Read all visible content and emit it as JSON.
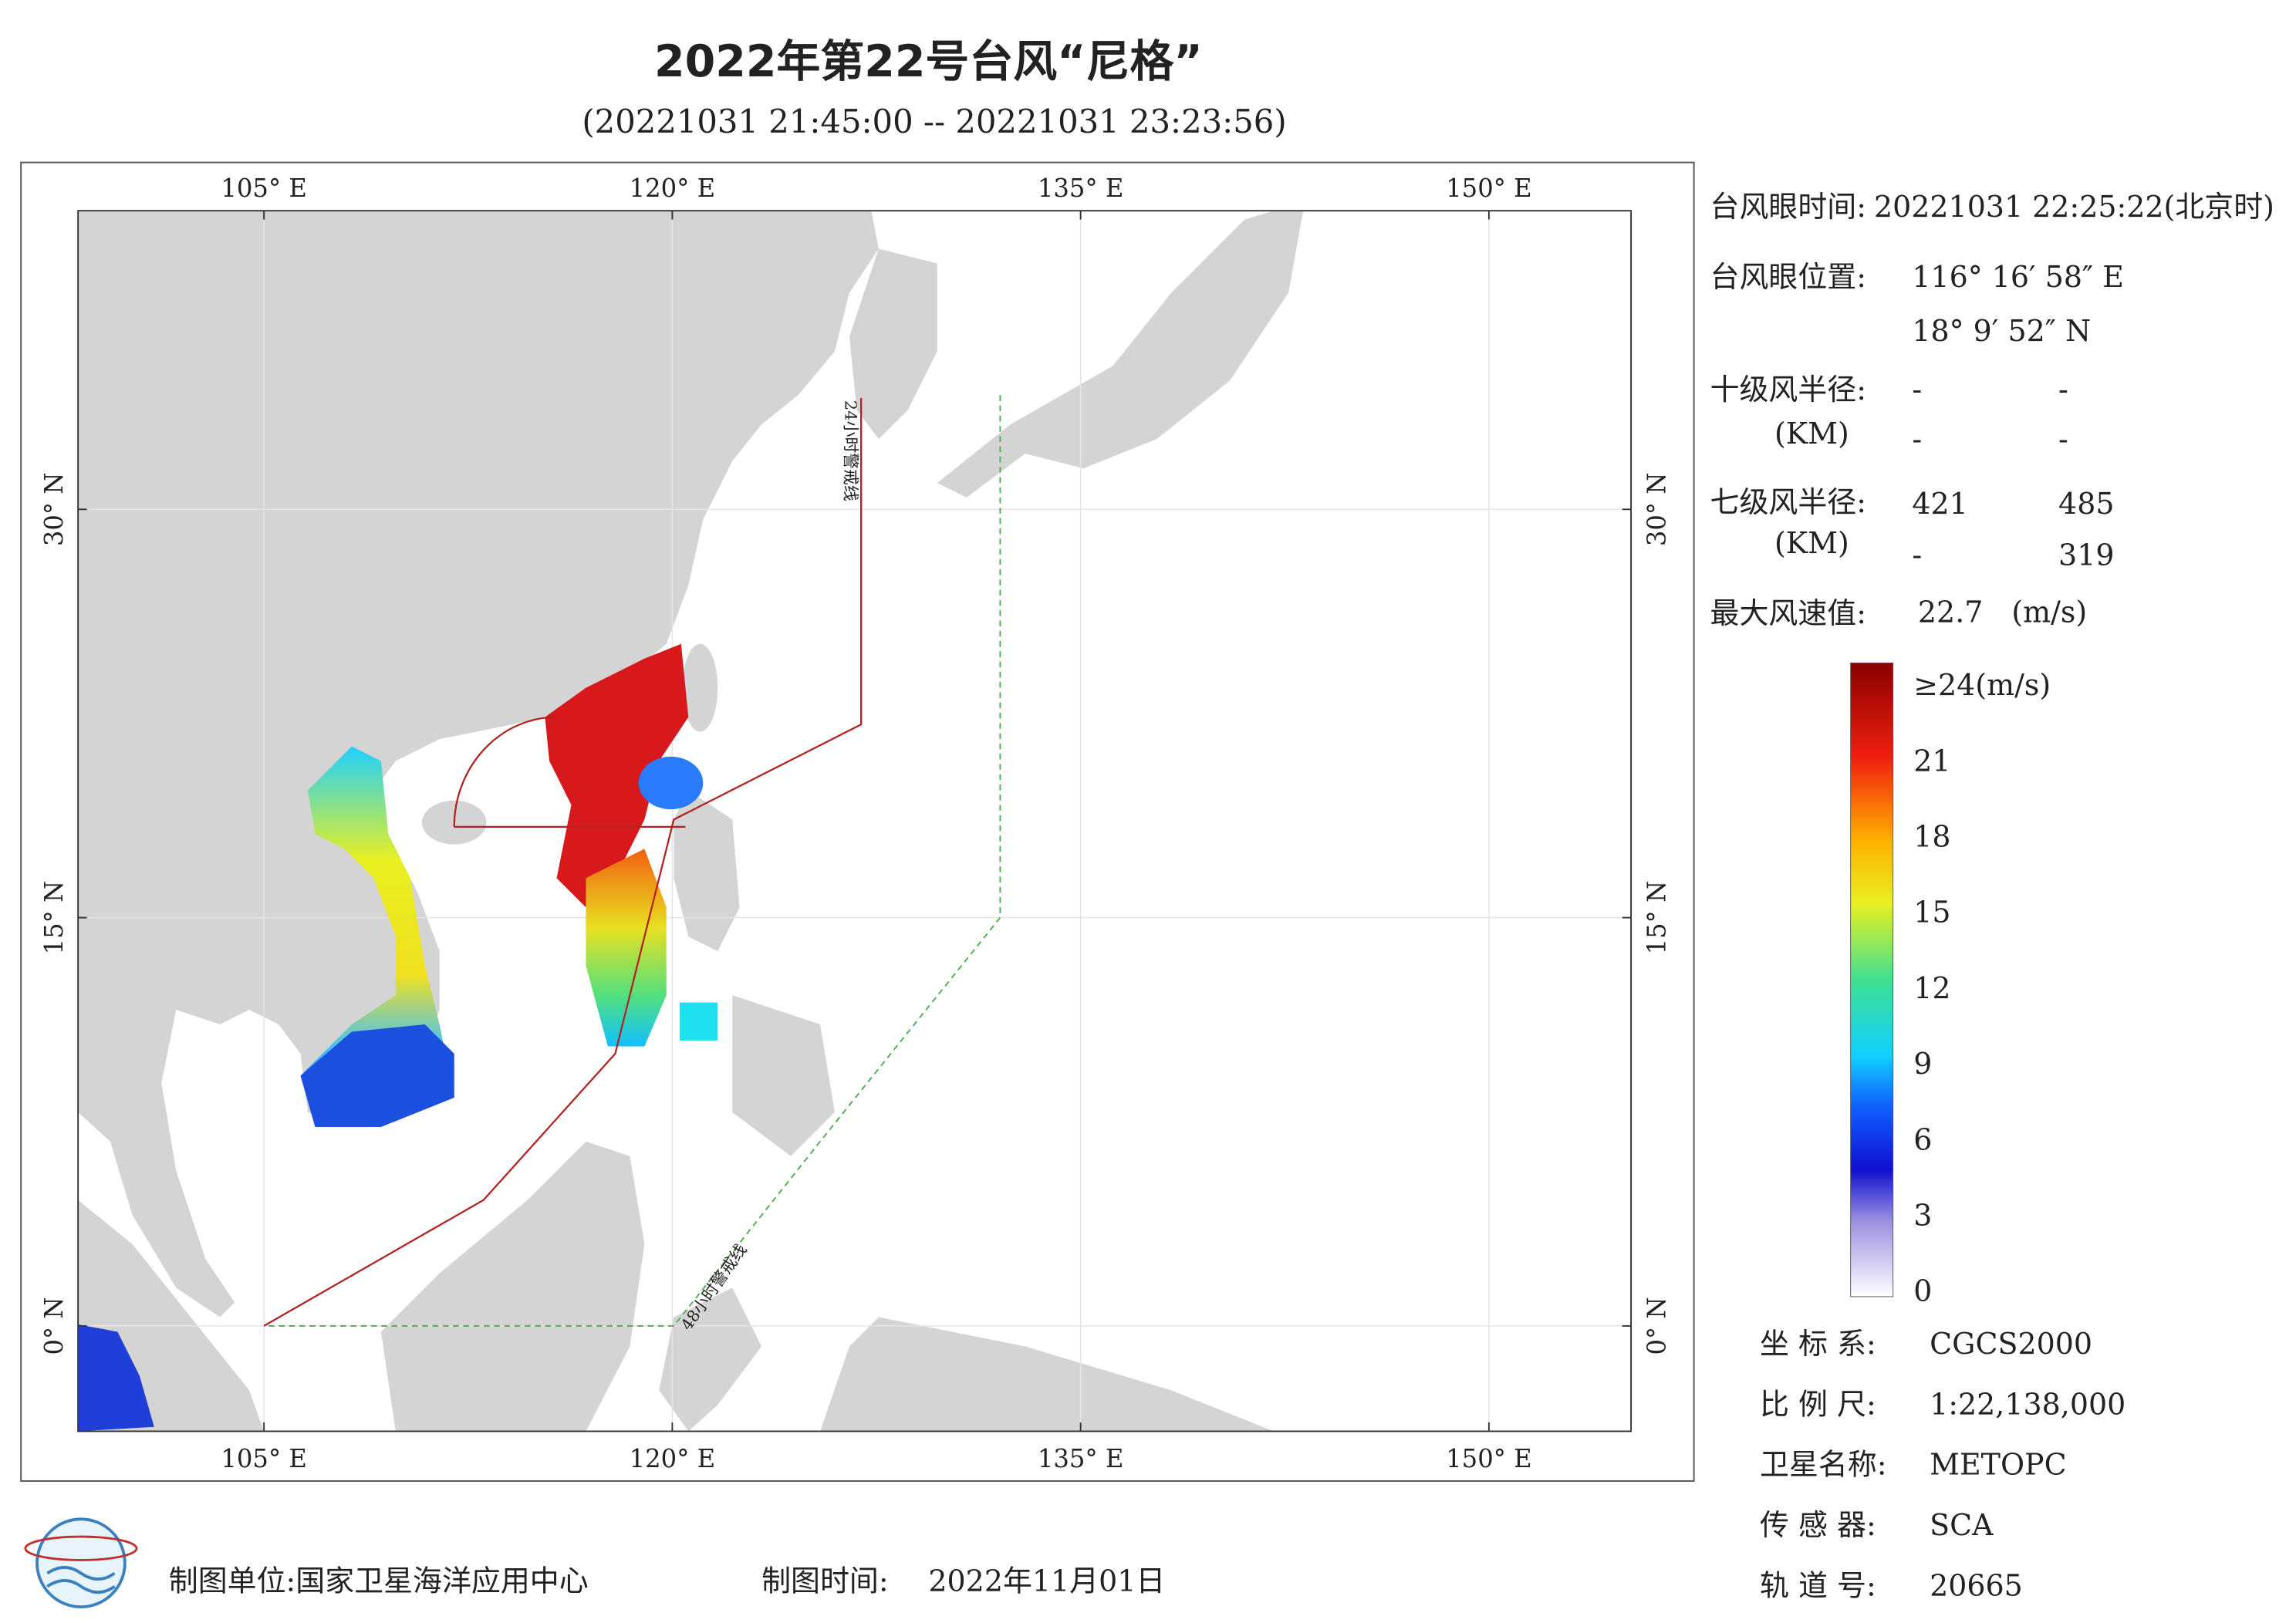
{
  "header": {
    "title": "2022年第22号台风“尼格”",
    "subtitle": "(20221031 21:45:00 -- 20221031 23:23:56)"
  },
  "map": {
    "xlim": [
      98.17,
      155.22
    ],
    "ylim": [
      -3.87,
      40.97
    ],
    "lon_ticks": [
      {
        "value": 105,
        "label": "105° E"
      },
      {
        "value": 120,
        "label": "120° E"
      },
      {
        "value": 135,
        "label": "135° E"
      },
      {
        "value": 150,
        "label": "150° E"
      }
    ],
    "lat_ticks": [
      {
        "value": 0,
        "label": "0° N"
      },
      {
        "value": 15,
        "label": "15° N"
      },
      {
        "value": 30,
        "label": "30° N"
      }
    ],
    "line_24h": "24小时警戒线",
    "line_48h": "48小时警戒线"
  },
  "info": {
    "eye_time_label": "台风眼时间:",
    "eye_time": "20221031 22:25:22(北京时)",
    "eye_pos_label": "台风眼位置:",
    "eye_lon": "116° 16′ 58″ E",
    "eye_lat": "18° 9′ 52″ N",
    "r10_label": "十级风半径:",
    "km_label": "(KM)",
    "r10": [
      "-",
      "-",
      "-",
      "-"
    ],
    "r7_label": "七级风半径:",
    "r7": [
      421,
      485,
      "-",
      319
    ],
    "max_wind_label": "最大风速值:",
    "max_wind": 22.7,
    "max_wind_unit": "(m/s)"
  },
  "colorbar": {
    "range": [
      0,
      24
    ],
    "ticks": [
      {
        "value": 24,
        "label": "≥24(m/s)"
      },
      21,
      18,
      15,
      12,
      9,
      6,
      3,
      0
    ]
  },
  "meta": [
    [
      "坐 标 系:",
      "CGCS2000"
    ],
    [
      "比 例 尺:",
      "1:22,138,000"
    ],
    [
      "卫星名称:",
      "METOPC"
    ],
    [
      "传 感 器:",
      "SCA"
    ],
    [
      "轨 道 号:",
      20665
    ]
  ],
  "footer": {
    "unit": "制图单位:国家卫星海洋应用中心",
    "time_label": "制图时间:",
    "time": "2022年11月01日"
  }
}
